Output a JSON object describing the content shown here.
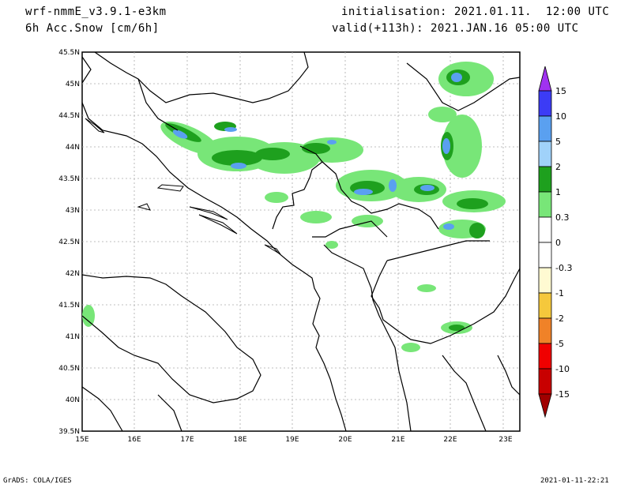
{
  "header": {
    "model": "wrf-nmmE_v3.9.1-e3km",
    "field": "6h Acc.Snow [cm/6h]",
    "init": "initialisation: 2021.01.11.  12:00 UTC",
    "valid": "valid(+113h): 2021.JAN.16 05:00 UTC"
  },
  "footer": {
    "left": "GrADS: COLA/IGES",
    "right": "2021-01-11-22:21"
  },
  "map": {
    "lat_labels": [
      "45.5N",
      "45N",
      "44.5N",
      "44N",
      "43.5N",
      "43N",
      "42.5N",
      "42N",
      "41.5N",
      "41N",
      "40.5N",
      "40N",
      "39.5N"
    ],
    "lon_labels": [
      "15E",
      "16E",
      "17E",
      "18E",
      "19E",
      "20E",
      "21E",
      "22E",
      "23E"
    ]
  },
  "legend": {
    "labels": [
      "15",
      "10",
      "5",
      "2",
      "1",
      "0.3",
      "0",
      "-0.3",
      "-1",
      "-2",
      "-5",
      "-10",
      "-15"
    ],
    "colors": [
      "#a032f0",
      "#3c3cf5",
      "#5aa0f0",
      "#a0d2fa",
      "#1ea01e",
      "#78e678",
      "#ffffff",
      "#fffad2",
      "#ffe678",
      "#f5c83c",
      "#f08228",
      "#f00000",
      "#c80000",
      "#a00000"
    ]
  }
}
